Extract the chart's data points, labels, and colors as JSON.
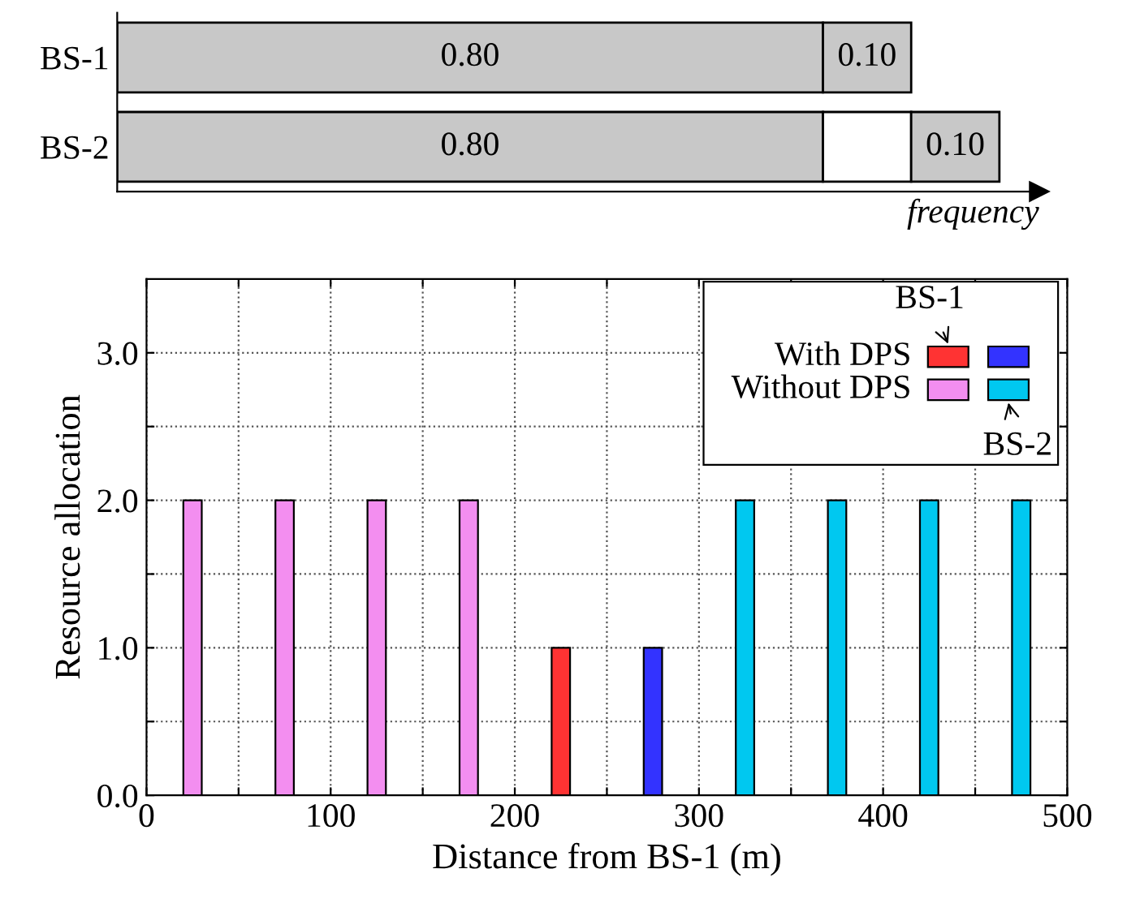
{
  "chart_data": [
    {
      "type": "bar",
      "orientation": "horizontal",
      "categories": [
        "BS-1",
        "BS-2"
      ],
      "xlabel": "frequency",
      "tick_labels": "y",
      "grid": false,
      "stacked": true,
      "series": [
        {
          "color": "#c8c8c8",
          "values": [
            0.8,
            0.8
          ],
          "value_labels": [
            "0.80",
            "0.80"
          ]
        },
        {
          "colors": [
            "#c8c8c8",
            "#ffffff"
          ],
          "values": [
            0.1,
            0.1
          ],
          "value_labels": [
            "0.10",
            null
          ]
        },
        {
          "color": "#c8c8c8",
          "values": [
            null,
            0.1
          ],
          "value_labels": [
            null,
            "0.10"
          ]
        }
      ]
    },
    {
      "type": "bar",
      "xlabel": "Distance from BS-1 (m)",
      "ylabel": "Resource allocation",
      "grid": true,
      "legend": "top right",
      "xlim": [
        0,
        500
      ],
      "xticks": [
        0,
        {
          "value": 50,
          "label": null
        },
        100,
        {
          "value": 150,
          "label": null
        },
        200,
        {
          "value": 250,
          "label": null
        },
        300,
        {
          "value": 350,
          "label": null
        },
        400,
        {
          "value": 450,
          "label": null
        },
        500
      ],
      "ylim": [
        0,
        3.5
      ],
      "yticks": [
        {
          "value": 0,
          "label": "0.0"
        },
        {
          "value": 0.5,
          "label": null
        },
        {
          "value": 1,
          "label": "1.0"
        },
        {
          "value": 1.5,
          "label": null
        },
        {
          "value": 2,
          "label": "2.0"
        },
        {
          "value": 2.5,
          "label": null
        },
        {
          "value": 3,
          "label": "3.0"
        }
      ],
      "annotations": [
        "BS-1",
        "BS-2"
      ],
      "series": [
        {
          "name": "With DPS",
          "color": "#ff3333",
          "x": [
            225
          ],
          "values": [
            1
          ]
        },
        {
          "color": "#3333ff",
          "x": [
            275
          ],
          "values": [
            1
          ]
        },
        {
          "name": "Without DPS",
          "color": "#f38ef0",
          "x": [
            25,
            75,
            125,
            175
          ],
          "values": [
            2,
            2,
            2,
            2
          ]
        },
        {
          "color": "#00c8f0",
          "x": [
            325,
            375,
            425,
            475
          ],
          "values": [
            2,
            2,
            2,
            2
          ]
        }
      ]
    }
  ]
}
